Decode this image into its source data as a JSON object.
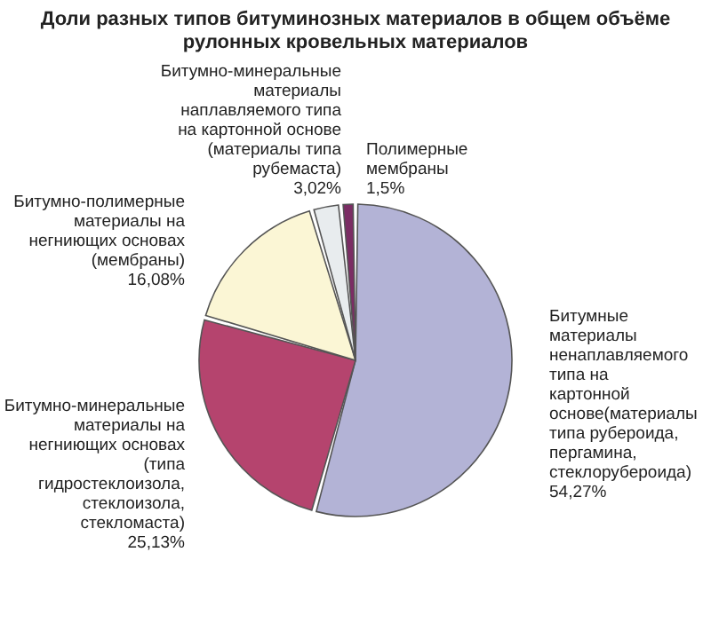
{
  "chart_data": {
    "type": "pie",
    "title": "Доли разных типов битуминозных материалов в общем объёме рулонных кровельных материалов",
    "categories": [
      "Битумные материалы ненаплавляемого типа на картонной основе(материалы типа рубероида, пергамина, стеклорубероида)",
      "Битумно-минеральные материалы на негниющих основах (типа гидростеклоизола, стеклоизола, стекломаста)",
      "Битумно-полимерные материалы на негниющих основах (мембраны)",
      "Битумно-минеральные материалы наплавляемого типа на картонной основе (материалы типа рубемаста)",
      "Полимерные мембраны"
    ],
    "values": [
      54.27,
      25.13,
      16.08,
      3.02,
      1.5
    ],
    "value_labels": [
      "54,27%",
      "25,13%",
      "16,08%",
      "3,02%",
      "1,5%"
    ],
    "colors": [
      "#b3b3d6",
      "#b5446e",
      "#fbf6d5",
      "#e8ecee",
      "#7b2d64"
    ],
    "legend": false
  }
}
